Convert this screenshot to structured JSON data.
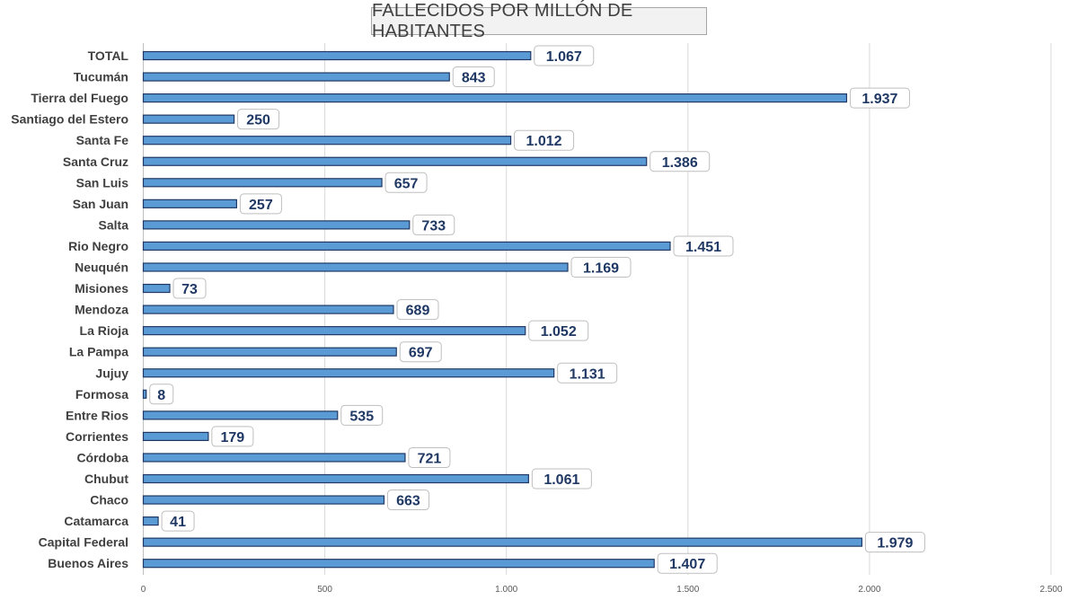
{
  "chart_data": {
    "type": "bar",
    "orientation": "horizontal",
    "title": "FALLECIDOS POR MILLÓN DE HABITANTES",
    "categories": [
      "TOTAL",
      "Tucumán",
      "Tierra del Fuego",
      "Santiago del Estero",
      "Santa Fe",
      "Santa Cruz",
      "San Luis",
      "San Juan",
      "Salta",
      "Rio Negro",
      "Neuquén",
      "Misiones",
      "Mendoza",
      "La Rioja",
      "La Pampa",
      "Jujuy",
      "Formosa",
      "Entre Rios",
      "Corrientes",
      "Córdoba",
      "Chubut",
      "Chaco",
      "Catamarca",
      "Capital Federal",
      "Buenos Aires"
    ],
    "values": [
      1067,
      843,
      1937,
      250,
      1012,
      1386,
      657,
      257,
      733,
      1451,
      1169,
      73,
      689,
      1052,
      697,
      1131,
      8,
      535,
      179,
      721,
      1061,
      663,
      41,
      1979,
      1407
    ],
    "value_labels": [
      "1.067",
      "843",
      "1.937",
      "250",
      "1.012",
      "1.386",
      "657",
      "257",
      "733",
      "1.451",
      "1.169",
      "73",
      "689",
      "1.052",
      "697",
      "1.131",
      "8",
      "535",
      "179",
      "721",
      "1.061",
      "663",
      "41",
      "1.979",
      "1.407"
    ],
    "xlim": [
      0,
      2500
    ],
    "xticks": [
      0,
      500,
      1000,
      1500,
      2000,
      2500
    ],
    "xtick_labels": [
      "0",
      "500",
      "1.000",
      "1.500",
      "2.000",
      "2.500"
    ],
    "grid": "vertical",
    "legend": "none",
    "colors": {
      "bar_fill": "#5b9bd5",
      "bar_stroke": "#1f3864",
      "label_text": "#1f3864",
      "grid": "#d9d9d9"
    }
  }
}
